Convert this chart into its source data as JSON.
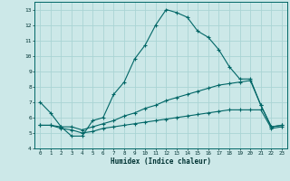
{
  "xlabel": "Humidex (Indice chaleur)",
  "bg_color": "#cce8e8",
  "line_color": "#006666",
  "grid_color": "#aad4d4",
  "xlim": [
    -0.5,
    23.5
  ],
  "ylim": [
    4.0,
    13.5
  ],
  "xticks": [
    0,
    1,
    2,
    3,
    4,
    5,
    6,
    7,
    8,
    9,
    10,
    11,
    12,
    13,
    14,
    15,
    16,
    17,
    18,
    19,
    20,
    21,
    22,
    23
  ],
  "yticks": [
    4,
    5,
    6,
    7,
    8,
    9,
    10,
    11,
    12,
    13
  ],
  "series1_x": [
    0,
    1,
    2,
    3,
    4,
    5,
    6,
    7,
    8,
    9,
    10,
    11,
    12,
    13,
    14,
    15,
    16,
    17,
    18,
    19,
    20,
    21,
    22,
    23
  ],
  "series1_y": [
    7.0,
    6.3,
    5.4,
    4.8,
    4.8,
    5.8,
    6.0,
    7.5,
    8.3,
    9.8,
    10.7,
    12.0,
    13.0,
    12.8,
    12.5,
    11.6,
    11.2,
    10.4,
    9.3,
    8.5,
    8.5,
    6.8,
    5.4,
    5.5
  ],
  "series2_x": [
    0,
    1,
    2,
    3,
    4,
    5,
    6,
    7,
    8,
    9,
    10,
    11,
    12,
    13,
    14,
    15,
    16,
    17,
    18,
    19,
    20,
    21,
    22,
    23
  ],
  "series2_y": [
    5.5,
    5.5,
    5.4,
    5.4,
    5.2,
    5.4,
    5.6,
    5.8,
    6.1,
    6.3,
    6.6,
    6.8,
    7.1,
    7.3,
    7.5,
    7.7,
    7.9,
    8.1,
    8.2,
    8.3,
    8.4,
    6.8,
    5.4,
    5.5
  ],
  "series3_x": [
    0,
    1,
    2,
    3,
    4,
    5,
    6,
    7,
    8,
    9,
    10,
    11,
    12,
    13,
    14,
    15,
    16,
    17,
    18,
    19,
    20,
    21,
    22,
    23
  ],
  "series3_y": [
    5.5,
    5.5,
    5.3,
    5.2,
    5.0,
    5.1,
    5.3,
    5.4,
    5.5,
    5.6,
    5.7,
    5.8,
    5.9,
    6.0,
    6.1,
    6.2,
    6.3,
    6.4,
    6.5,
    6.5,
    6.5,
    6.5,
    5.3,
    5.4
  ]
}
